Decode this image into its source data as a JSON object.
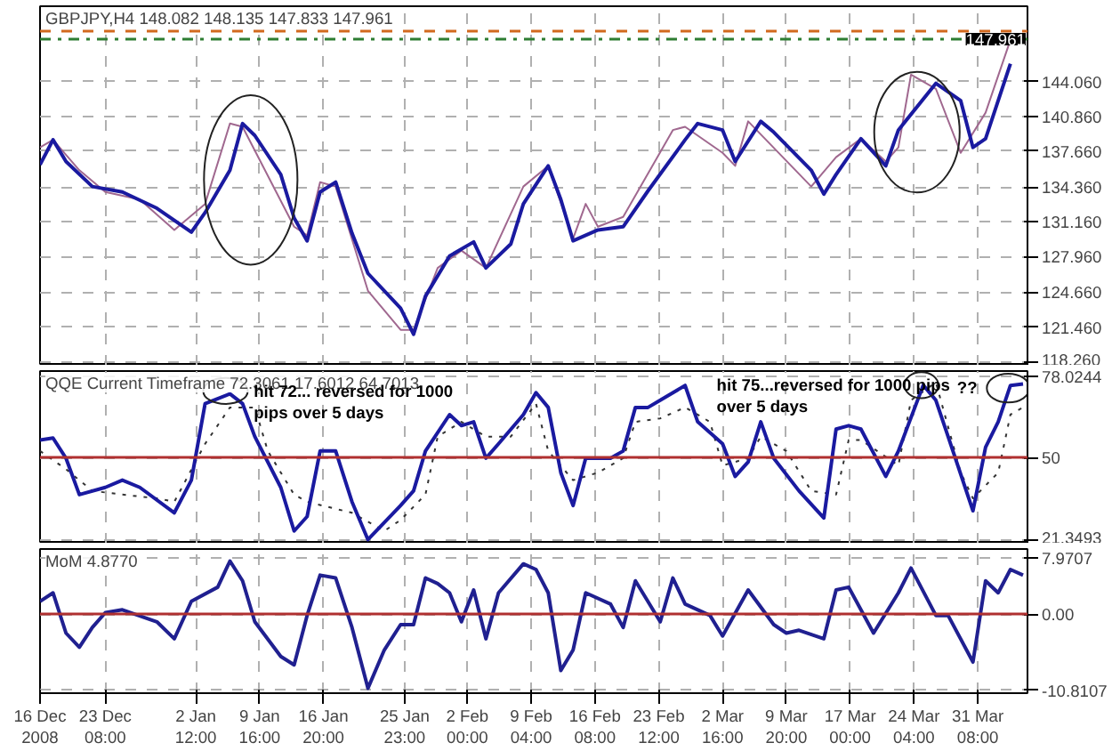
{
  "chart_data": [
    {
      "type": "line",
      "title": "GBPJPY,H4 148.082 148.135 147.833 147.961",
      "xlim": [
        "2008-12-16T00:00",
        "2009-04-05T22:00"
      ],
      "ylim": [
        117.9,
        151.0
      ],
      "xticks": [
        {
          "value": "2008-12-16T00:00",
          "label": null
        },
        {
          "value": "2008-12-23T08:00",
          "label": null
        },
        {
          "value": "2009-01-02T12:00",
          "label": null
        },
        {
          "value": "2009-01-09T16:00",
          "label": null
        },
        {
          "value": "2009-01-16T20:00",
          "label": null
        },
        {
          "value": "2009-01-25T23:00",
          "label": null
        },
        {
          "value": "2009-02-02T00:00",
          "label": null
        },
        {
          "value": "2009-02-09T04:00",
          "label": null
        },
        {
          "value": "2009-02-16T08:00",
          "label": null
        },
        {
          "value": "2009-02-23T12:00",
          "label": null
        },
        {
          "value": "2009-03-02T16:00",
          "label": null
        },
        {
          "value": "2009-03-09T20:00",
          "label": null
        },
        {
          "value": "2009-03-17T00:00",
          "label": null
        },
        {
          "value": "2009-03-24T04:00",
          "label": null
        },
        {
          "value": "2009-03-31T08:00",
          "label": null
        }
      ],
      "yticks": [
        {
          "value": 118.26,
          "label": "118.260"
        },
        {
          "value": 121.46,
          "label": "121.460"
        },
        {
          "value": 124.66,
          "label": "124.660"
        },
        {
          "value": 127.96,
          "label": "127.960"
        },
        {
          "value": 131.16,
          "label": "131.160"
        },
        {
          "value": 134.36,
          "label": "134.360"
        },
        {
          "value": 137.66,
          "label": "137.660"
        },
        {
          "value": 140.86,
          "label": "140.860"
        },
        {
          "value": 144.06,
          "label": "144.060"
        }
      ],
      "tick_labels": "y",
      "grid": true,
      "ref_lines": [
        {
          "axis": "y",
          "value": 148.7,
          "label": null,
          "color": "#d2691e",
          "line_style": "dashed"
        },
        {
          "axis": "y",
          "value": 147.961,
          "label": "147.961",
          "color": "#2e7d32",
          "line_style": "dashdot"
        }
      ],
      "series": [
        {
          "color": "#a0688f",
          "line_style": "solid",
          "x": [
            "2008-12-16T00:00",
            "2008-12-17T11:00",
            "2008-12-20T10:00",
            "2008-12-23T08:00",
            "2008-12-27T05:00",
            "2008-12-31T02:00",
            "2009-01-03T13:00",
            "2009-01-06T08:00",
            "2009-01-07T18:00",
            "2009-01-13T13:00",
            "2009-01-15T00:00",
            "2009-01-16T11:00",
            "2009-01-18T05:00",
            "2009-01-21T20:00",
            "2009-01-25T12:00",
            "2009-01-26T23:00",
            "2009-01-29T16:00",
            "2009-02-01T08:00",
            "2009-02-04T02:00",
            "2009-02-08T07:00",
            "2009-02-11T02:00",
            "2009-02-13T21:00",
            "2009-02-15T07:00",
            "2009-02-16T16:00",
            "2009-02-19T12:00",
            "2009-02-25T02:00",
            "2009-02-26T11:00",
            "2009-03-02T16:00",
            "2009-03-04T02:00",
            "2009-03-05T13:00",
            "2009-03-12T15:00",
            "2009-03-15T10:00",
            "2009-03-18T05:00",
            "2009-03-21T00:00",
            "2009-03-22T10:00",
            "2009-03-23T20:00",
            "2009-03-26T15:00",
            "2009-03-29T10:00",
            "2009-04-01T05:00",
            "2009-04-04T00:00"
          ],
          "values": [
            138.0,
            138.7,
            135.9,
            133.9,
            133.2,
            130.4,
            132.8,
            140.2,
            139.9,
            130.7,
            129.9,
            134.8,
            134.4,
            124.8,
            121.2,
            121.2,
            126.9,
            128.5,
            126.9,
            134.4,
            136.3,
            129.6,
            132.8,
            130.7,
            131.6,
            139.6,
            139.9,
            137.5,
            136.3,
            140.4,
            134.4,
            137.1,
            138.8,
            136.7,
            138.0,
            144.7,
            143.4,
            137.5,
            141.2,
            147.9
          ]
        },
        {
          "color": "#1a1aa0",
          "line_style": "solid",
          "x": [
            "2008-12-16T00:00",
            "2008-12-17T11:00",
            "2008-12-18T22:00",
            "2008-12-21T21:00",
            "2008-12-25T06:00",
            "2008-12-29T03:00",
            "2009-01-02T00:00",
            "2009-01-03T13:00",
            "2009-01-06T08:00",
            "2009-01-07T18:00",
            "2009-01-09T03:00",
            "2009-01-12T01:00",
            "2009-01-13T13:00",
            "2009-01-15T00:00",
            "2009-01-16T11:00",
            "2009-01-18T05:00",
            "2009-01-20T01:00",
            "2009-01-21T20:00",
            "2009-01-25T12:00",
            "2009-01-26T23:00",
            "2009-01-28T07:00",
            "2009-01-31T00:00",
            "2009-02-02T17:00",
            "2009-02-04T02:00",
            "2009-02-06T21:00",
            "2009-02-08T07:00",
            "2009-02-11T02:00",
            "2009-02-12T12:00",
            "2009-02-13T21:00",
            "2009-02-16T16:00",
            "2009-02-19T12:00",
            "2009-02-22T07:00",
            "2009-02-26T11:00",
            "2009-02-27T21:00",
            "2009-03-02T16:00",
            "2009-03-04T02:00",
            "2009-03-06T23:00",
            "2009-03-08T10:00",
            "2009-03-12T15:00",
            "2009-03-14T01:00",
            "2009-03-15T10:00",
            "2009-03-18T05:00",
            "2009-03-21T00:00",
            "2009-03-22T10:00",
            "2009-03-26T15:00",
            "2009-03-29T10:00",
            "2009-03-30T19:00",
            "2009-04-01T05:00",
            "2009-04-02T15:00",
            "2009-04-04T00:00"
          ],
          "values": [
            136.4,
            138.7,
            136.7,
            134.4,
            133.9,
            132.4,
            130.2,
            132.0,
            135.9,
            140.2,
            139.1,
            135.5,
            131.5,
            129.4,
            133.9,
            134.8,
            130.1,
            126.4,
            123.2,
            120.8,
            124.3,
            128.0,
            129.3,
            126.9,
            129.1,
            132.8,
            136.3,
            133.2,
            129.4,
            130.4,
            130.7,
            134.0,
            138.7,
            140.2,
            139.6,
            136.7,
            140.4,
            139.4,
            135.9,
            133.7,
            135.5,
            138.8,
            136.3,
            139.6,
            143.9,
            142.3,
            138.0,
            138.8,
            142.3,
            145.7
          ]
        }
      ]
    },
    {
      "type": "line",
      "title": "QQE Current Timeframe 72.3061 17.6012 64.7013",
      "xlim": [
        "2008-12-16T00:00",
        "2009-04-05T22:00"
      ],
      "ylim": [
        20.1,
        79.9
      ],
      "xticks": [
        {
          "value": "2008-12-16T00:00",
          "label": null
        },
        {
          "value": "2008-12-23T08:00",
          "label": null
        },
        {
          "value": "2009-01-02T12:00",
          "label": null
        },
        {
          "value": "2009-01-09T16:00",
          "label": null
        },
        {
          "value": "2009-01-16T20:00",
          "label": null
        },
        {
          "value": "2009-01-25T23:00",
          "label": null
        },
        {
          "value": "2009-02-02T00:00",
          "label": null
        },
        {
          "value": "2009-02-09T04:00",
          "label": null
        },
        {
          "value": "2009-02-16T08:00",
          "label": null
        },
        {
          "value": "2009-02-23T12:00",
          "label": null
        },
        {
          "value": "2009-03-02T16:00",
          "label": null
        },
        {
          "value": "2009-03-09T20:00",
          "label": null
        },
        {
          "value": "2009-03-17T00:00",
          "label": null
        },
        {
          "value": "2009-03-24T04:00",
          "label": null
        },
        {
          "value": "2009-03-31T08:00",
          "label": null
        }
      ],
      "yticks": [
        {
          "value": 21.3493,
          "label": "21.3493"
        },
        {
          "value": 50,
          "label": "50"
        },
        {
          "value": 78.0244,
          "label": "78.0244"
        }
      ],
      "tick_labels": "y",
      "grid": true,
      "ref_lines": [
        {
          "axis": "y",
          "value": 50,
          "label": null,
          "color": "#b03030",
          "line_style": "solid"
        }
      ],
      "annotations": [
        "hit 72... reversed for 1000\npips over 5 days",
        "hit 75...reversed for 1000 pips\nover 5 days",
        "??"
      ],
      "series": [
        {
          "color": "#333333",
          "line_style": "dotted",
          "x": [
            "2008-12-16T00:00",
            "2008-12-18T22:00",
            "2008-12-21T21:00",
            "2008-12-25T06:00",
            "2008-12-29T03:00",
            "2008-12-31T02:00",
            "2009-01-03T13:00",
            "2009-01-06T08:00",
            "2009-01-09T03:00",
            "2009-01-10T14:00",
            "2009-01-13T13:00",
            "2009-01-15T00:00",
            "2009-01-20T01:00",
            "2009-01-23T16:00",
            "2009-01-25T12:00",
            "2009-01-28T07:00",
            "2009-01-29T16:00",
            "2009-02-01T08:00",
            "2009-02-04T02:00",
            "2009-02-06T21:00",
            "2009-02-09T17:00",
            "2009-02-11T02:00",
            "2009-02-13T21:00",
            "2009-02-16T16:00",
            "2009-02-19T12:00",
            "2009-02-20T21:00",
            "2009-02-23T16:00",
            "2009-02-26T11:00",
            "2009-03-01T06:00",
            "2009-03-02T16:00",
            "2009-03-05T13:00",
            "2009-03-06T23:00",
            "2009-03-09T20:00",
            "2009-03-12T15:00",
            "2009-03-15T10:00",
            "2009-03-16T20:00",
            "2009-03-18T05:00",
            "2009-03-22T10:00",
            "2009-03-23T20:00",
            "2009-03-26T15:00",
            "2009-03-29T10:00",
            "2009-03-30T19:00",
            "2009-04-02T15:00",
            "2009-04-04T00:00",
            "2009-04-05T10:00"
          ],
          "values": [
            52.2,
            45.9,
            38.4,
            37.1,
            35.8,
            34.6,
            54.7,
            67.3,
            67.3,
            52.2,
            37.1,
            34.6,
            30.8,
            24.5,
            28.3,
            37.1,
            57.2,
            62.3,
            57.2,
            57.2,
            68.6,
            52.2,
            42.1,
            44.7,
            49.7,
            62.3,
            63.5,
            67.3,
            62.3,
            47.2,
            49.7,
            57.2,
            52.2,
            38.4,
            37.1,
            56.0,
            56.0,
            47.2,
            69.8,
            76.0,
            44.7,
            35.8,
            44.7,
            64.8,
            67.3
          ]
        },
        {
          "color": "#1a1aa0",
          "line_style": "solid",
          "x": [
            "2008-12-16T00:00",
            "2008-12-17T11:00",
            "2008-12-18T22:00",
            "2008-12-20T10:00",
            "2008-12-23T08:00",
            "2008-12-25T06:00",
            "2008-12-27T05:00",
            "2008-12-31T02:00",
            "2009-01-02T00:00",
            "2009-01-03T13:00",
            "2009-01-06T08:00",
            "2009-01-07T18:00",
            "2009-01-09T03:00",
            "2009-01-12T01:00",
            "2009-01-13T13:00",
            "2009-01-15T00:00",
            "2009-01-16T11:00",
            "2009-01-18T05:00",
            "2009-01-20T01:00",
            "2009-01-21T20:00",
            "2009-01-25T12:00",
            "2009-01-26T23:00",
            "2009-01-28T07:00",
            "2009-01-31T00:00",
            "2009-02-01T08:00",
            "2009-02-02T17:00",
            "2009-02-04T02:00",
            "2009-02-05T12:00",
            "2009-02-08T07:00",
            "2009-02-09T17:00",
            "2009-02-11T02:00",
            "2009-02-12T12:00",
            "2009-02-13T21:00",
            "2009-02-15T07:00",
            "2009-02-18T02:00",
            "2009-02-19T12:00",
            "2009-02-20T21:00",
            "2009-02-22T07:00",
            "2009-02-23T16:00",
            "2009-02-26T11:00",
            "2009-02-27T21:00",
            "2009-03-02T16:00",
            "2009-03-04T02:00",
            "2009-03-05T13:00",
            "2009-03-06T23:00",
            "2009-03-08T10:00",
            "2009-03-11T06:00",
            "2009-03-14T01:00",
            "2009-03-15T10:00",
            "2009-03-16T20:00",
            "2009-03-18T05:00",
            "2009-03-21T00:00",
            "2009-03-22T10:00",
            "2009-03-25T05:00",
            "2009-03-26T15:00",
            "2009-03-28T00:00",
            "2009-03-30T19:00",
            "2009-04-01T05:00",
            "2009-04-02T15:00",
            "2009-04-04T00:00",
            "2009-04-05T10:00"
          ],
          "values": [
            56.0,
            56.7,
            49.7,
            37.1,
            39.6,
            42.1,
            39.6,
            30.8,
            42.1,
            68.6,
            72.0,
            68.6,
            57.2,
            39.6,
            24.5,
            29.5,
            52.2,
            52.2,
            34.6,
            21.5,
            33.3,
            38.4,
            52.2,
            64.8,
            61.0,
            62.3,
            49.7,
            54.7,
            64.8,
            72.4,
            67.3,
            44.7,
            33.3,
            49.7,
            49.7,
            52.2,
            67.3,
            67.3,
            69.8,
            74.9,
            62.3,
            54.7,
            43.4,
            48.4,
            62.3,
            49.7,
            38.4,
            29.0,
            59.8,
            61.0,
            59.8,
            43.4,
            52.2,
            75.0,
            69.8,
            57.2,
            31.5,
            53.5,
            62.3,
            74.9,
            75.4
          ]
        }
      ]
    },
    {
      "type": "line",
      "title": "MoM 4.8770",
      "xlim": [
        "2008-12-16T00:00",
        "2009-04-05T22:00"
      ],
      "ylim": [
        -11.2,
        9.2
      ],
      "xticks": [
        {
          "value": "2008-12-16T00:00",
          "label": "16 Dec 2008"
        },
        {
          "value": "2008-12-23T08:00",
          "label": "23 Dec 08:00"
        },
        {
          "value": "2009-01-02T12:00",
          "label": "2 Jan 12:00"
        },
        {
          "value": "2009-01-09T16:00",
          "label": "9 Jan 16:00"
        },
        {
          "value": "2009-01-16T20:00",
          "label": "16 Jan 20:00"
        },
        {
          "value": "2009-01-25T23:00",
          "label": "25 Jan 23:00"
        },
        {
          "value": "2009-02-02T00:00",
          "label": "2 Feb 00:00"
        },
        {
          "value": "2009-02-09T04:00",
          "label": "9 Feb 04:00"
        },
        {
          "value": "2009-02-16T08:00",
          "label": "16 Feb 08:00"
        },
        {
          "value": "2009-02-23T12:00",
          "label": "23 Feb 12:00"
        },
        {
          "value": "2009-03-02T16:00",
          "label": "2 Mar 16:00"
        },
        {
          "value": "2009-03-09T20:00",
          "label": "9 Mar 20:00"
        },
        {
          "value": "2009-03-17T00:00",
          "label": "17 Mar 00:00"
        },
        {
          "value": "2009-03-24T04:00",
          "label": "24 Mar 04:00"
        },
        {
          "value": "2009-03-31T08:00",
          "label": "31 Mar 08:00"
        }
      ],
      "yticks": [
        {
          "value": -10.8107,
          "label": "-10.8107"
        },
        {
          "value": 0,
          "label": "0.00"
        },
        {
          "value": 7.9707,
          "label": "7.9707"
        }
      ],
      "grid": true,
      "ref_lines": [
        {
          "axis": "y",
          "value": 0,
          "label": null,
          "color": "#b03030",
          "line_style": "solid"
        }
      ],
      "series": [
        {
          "color": "#202090",
          "line_style": "solid",
          "x": [
            "2008-12-16T00:00",
            "2008-12-17T11:00",
            "2008-12-18T22:00",
            "2008-12-20T10:00",
            "2008-12-21T21:00",
            "2008-12-23T08:00",
            "2008-12-25T06:00",
            "2008-12-29T03:00",
            "2008-12-31T02:00",
            "2009-01-02T00:00",
            "2009-01-04T23:00",
            "2009-01-06T08:00",
            "2009-01-07T18:00",
            "2009-01-09T03:00",
            "2009-01-12T01:00",
            "2009-01-13T13:00",
            "2009-01-15T00:00",
            "2009-01-16T11:00",
            "2009-01-18T05:00",
            "2009-01-20T01:00",
            "2009-01-21T20:00",
            "2009-01-23T16:00",
            "2009-01-25T12:00",
            "2009-01-26T23:00",
            "2009-01-28T07:00",
            "2009-01-29T16:00",
            "2009-01-31T00:00",
            "2009-02-01T08:00",
            "2009-02-02T17:00",
            "2009-02-04T02:00",
            "2009-02-05T12:00",
            "2009-02-08T07:00",
            "2009-02-09T17:00",
            "2009-02-11T02:00",
            "2009-02-12T12:00",
            "2009-02-13T21:00",
            "2009-02-15T07:00",
            "2009-02-18T02:00",
            "2009-02-19T12:00",
            "2009-02-20T21:00",
            "2009-02-23T16:00",
            "2009-02-25T02:00",
            "2009-02-26T11:00",
            "2009-03-01T06:00",
            "2009-03-02T16:00",
            "2009-03-05T13:00",
            "2009-03-08T10:00",
            "2009-03-09T20:00",
            "2009-03-11T06:00",
            "2009-03-14T01:00",
            "2009-03-15T10:00",
            "2009-03-16T20:00",
            "2009-03-18T05:00",
            "2009-03-19T15:00",
            "2009-03-22T10:00",
            "2009-03-23T20:00",
            "2009-03-26T15:00",
            "2009-03-28T00:00",
            "2009-03-30T19:00",
            "2009-04-01T05:00",
            "2009-04-02T15:00",
            "2009-04-04T00:00",
            "2009-04-05T10:00"
          ],
          "values": [
            1.8,
            3.0,
            -2.7,
            -4.7,
            -1.9,
            0.2,
            0.6,
            -1.1,
            -3.5,
            1.8,
            3.8,
            7.5,
            4.7,
            -1.1,
            -6.0,
            -7.2,
            -0.2,
            5.5,
            5.1,
            -1.9,
            -10.5,
            -5.1,
            -1.5,
            -1.5,
            5.1,
            4.3,
            3.0,
            -1.1,
            3.4,
            -3.5,
            3.0,
            7.1,
            6.3,
            3.0,
            -8.0,
            -5.1,
            3.0,
            1.4,
            -1.9,
            4.7,
            -1.1,
            5.1,
            1.4,
            -0.2,
            -3.1,
            3.4,
            -1.5,
            -2.7,
            -2.3,
            -3.5,
            3.4,
            3.8,
            0.6,
            -2.7,
            3.0,
            6.5,
            -0.2,
            -0.2,
            -6.8,
            4.7,
            3.0,
            6.3,
            5.5
          ]
        }
      ]
    }
  ]
}
